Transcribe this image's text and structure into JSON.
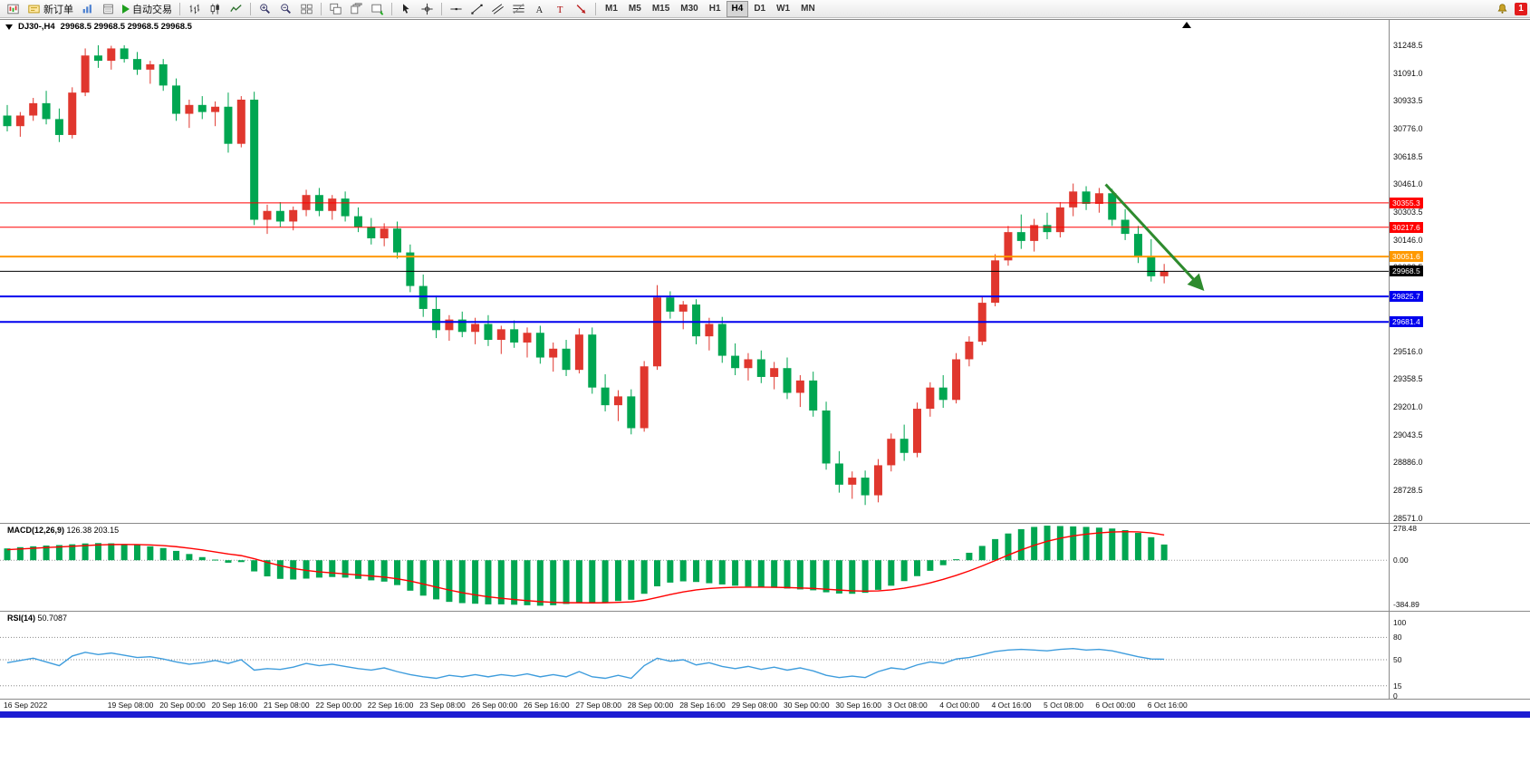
{
  "window": {
    "title": "DJ30-,H4",
    "ohlc": "29968.5 29968.5 29968.5 29968.5"
  },
  "toolbar": {
    "new_order_label": "新订单",
    "autotrading_label": "自动交易",
    "timeframes": [
      "M1",
      "M5",
      "M15",
      "M30",
      "H1",
      "H4",
      "D1",
      "W1",
      "MN"
    ],
    "active_timeframe": "H4",
    "notification_count": "1"
  },
  "chart_data": {
    "type": "candlestick",
    "symbol": "DJ30-",
    "timeframe": "H4",
    "colors": {
      "up": "#e0372e",
      "down": "#00a651",
      "macd_histogram": "#00a651",
      "macd_signal": "#ff0000",
      "rsi_line": "#3f9ddd"
    },
    "y_ticks": [
      "31248.5",
      "31091.0",
      "30933.5",
      "30776.0",
      "30618.5",
      "30461.0",
      "30303.5",
      "30146.0",
      "29988.5",
      "29831.0",
      "29673.5",
      "29516.0",
      "29358.5",
      "29201.0",
      "29043.5",
      "28886.0",
      "28728.5",
      "28571.0"
    ],
    "candles": [
      [
        30850,
        30910,
        30760,
        30790
      ],
      [
        30790,
        30870,
        30730,
        30850
      ],
      [
        30850,
        30950,
        30820,
        30920
      ],
      [
        30920,
        30990,
        30800,
        30830
      ],
      [
        30830,
        30890,
        30700,
        30740
      ],
      [
        30740,
        31010,
        30720,
        30980
      ],
      [
        30980,
        31230,
        30960,
        31190
      ],
      [
        31190,
        31248,
        31120,
        31160
      ],
      [
        31160,
        31245,
        31110,
        31230
      ],
      [
        31230,
        31248,
        31150,
        31170
      ],
      [
        31170,
        31210,
        31080,
        31110
      ],
      [
        31110,
        31160,
        31030,
        31140
      ],
      [
        31140,
        31170,
        30990,
        31020
      ],
      [
        31020,
        31060,
        30820,
        30860
      ],
      [
        30860,
        30940,
        30780,
        30910
      ],
      [
        30910,
        30960,
        30830,
        30870
      ],
      [
        30870,
        30930,
        30790,
        30900
      ],
      [
        30900,
        30980,
        30640,
        30690
      ],
      [
        30690,
        30960,
        30670,
        30940
      ],
      [
        30940,
        30985,
        30230,
        30260
      ],
      [
        30260,
        30345,
        30180,
        30310
      ],
      [
        30310,
        30360,
        30220,
        30250
      ],
      [
        30250,
        30335,
        30200,
        30315
      ],
      [
        30315,
        30430,
        30280,
        30400
      ],
      [
        30400,
        30440,
        30280,
        30310
      ],
      [
        30310,
        30400,
        30260,
        30380
      ],
      [
        30380,
        30420,
        30250,
        30280
      ],
      [
        30280,
        30330,
        30190,
        30220
      ],
      [
        30220,
        30270,
        30120,
        30155
      ],
      [
        30155,
        30240,
        30110,
        30210
      ],
      [
        30210,
        30250,
        30040,
        30075
      ],
      [
        30075,
        30120,
        29850,
        29885
      ],
      [
        29885,
        29950,
        29710,
        29755
      ],
      [
        29755,
        29830,
        29590,
        29635
      ],
      [
        29635,
        29720,
        29575,
        29695
      ],
      [
        29695,
        29740,
        29595,
        29625
      ],
      [
        29625,
        29705,
        29555,
        29670
      ],
      [
        29670,
        29720,
        29545,
        29580
      ],
      [
        29580,
        29660,
        29500,
        29640
      ],
      [
        29640,
        29690,
        29535,
        29565
      ],
      [
        29565,
        29650,
        29480,
        29620
      ],
      [
        29620,
        29660,
        29445,
        29480
      ],
      [
        29480,
        29565,
        29400,
        29530
      ],
      [
        29530,
        29580,
        29375,
        29410
      ],
      [
        29410,
        29645,
        29390,
        29610
      ],
      [
        29610,
        29650,
        29275,
        29310
      ],
      [
        29310,
        29385,
        29175,
        29210
      ],
      [
        29210,
        29295,
        29120,
        29260
      ],
      [
        29260,
        29300,
        29045,
        29080
      ],
      [
        29080,
        29460,
        29060,
        29430
      ],
      [
        29430,
        29890,
        29410,
        29820
      ],
      [
        29820,
        29855,
        29700,
        29740
      ],
      [
        29740,
        29800,
        29640,
        29780
      ],
      [
        29780,
        29810,
        29555,
        29600
      ],
      [
        29600,
        29705,
        29520,
        29670
      ],
      [
        29670,
        29710,
        29450,
        29490
      ],
      [
        29490,
        29560,
        29380,
        29420
      ],
      [
        29420,
        29505,
        29350,
        29470
      ],
      [
        29470,
        29520,
        29335,
        29370
      ],
      [
        29370,
        29455,
        29300,
        29420
      ],
      [
        29420,
        29480,
        29245,
        29280
      ],
      [
        29280,
        29380,
        29200,
        29350
      ],
      [
        29350,
        29400,
        29145,
        29180
      ],
      [
        29180,
        29230,
        28845,
        28880
      ],
      [
        28880,
        28950,
        28715,
        28760
      ],
      [
        28760,
        28835,
        28680,
        28800
      ],
      [
        28800,
        28840,
        28645,
        28700
      ],
      [
        28700,
        28905,
        28660,
        28870
      ],
      [
        28870,
        29050,
        28835,
        29020
      ],
      [
        29020,
        29100,
        28895,
        28940
      ],
      [
        28940,
        29225,
        28915,
        29190
      ],
      [
        29190,
        29340,
        29145,
        29310
      ],
      [
        29310,
        29380,
        29195,
        29240
      ],
      [
        29240,
        29505,
        29220,
        29470
      ],
      [
        29470,
        29600,
        29430,
        29570
      ],
      [
        29570,
        29825,
        29550,
        29790
      ],
      [
        29790,
        30065,
        29770,
        30030
      ],
      [
        30030,
        30225,
        30000,
        30190
      ],
      [
        30190,
        30290,
        30095,
        30140
      ],
      [
        30140,
        30265,
        30080,
        30230
      ],
      [
        30230,
        30300,
        30150,
        30190
      ],
      [
        30190,
        30360,
        30160,
        30330
      ],
      [
        30330,
        30465,
        30280,
        30420
      ],
      [
        30420,
        30450,
        30315,
        30350
      ],
      [
        30350,
        30440,
        30300,
        30410
      ],
      [
        30410,
        30435,
        30225,
        30260
      ],
      [
        30260,
        30320,
        30145,
        30180
      ],
      [
        30180,
        30225,
        30015,
        30050
      ],
      [
        30050,
        30150,
        29910,
        29940
      ],
      [
        29940,
        30010,
        29900,
        29968.5
      ]
    ],
    "hlines": [
      {
        "price": 30355.3,
        "label": "30355.3",
        "color": "#ff0000",
        "width": 1
      },
      {
        "price": 30217.6,
        "label": "30217.6",
        "color": "#ff0000",
        "width": 1
      },
      {
        "price": 30051.6,
        "label": "30051.6",
        "color": "#ff9900",
        "width": 2
      },
      {
        "price": 29968.5,
        "label": "29968.5",
        "color": "#000000",
        "width": 1
      },
      {
        "price": 29825.7,
        "label": "29825.7",
        "color": "#0000ee",
        "width": 2
      },
      {
        "price": 29681.4,
        "label": "29681.4",
        "color": "#0000ee",
        "width": 2
      }
    ],
    "current_price": 29968.5,
    "arrow": {
      "x1_bar": 84.5,
      "y1_price": 30460,
      "x2_bar": 91.8,
      "y2_price": 29880,
      "color": "#2e8b2e"
    },
    "x_labels": [
      {
        "bar": 0,
        "label": "16 Sep 2022"
      },
      {
        "bar": 8,
        "label": "19 Sep 08:00"
      },
      {
        "bar": 12,
        "label": "20 Sep 00:00"
      },
      {
        "bar": 16,
        "label": "20 Sep 16:00"
      },
      {
        "bar": 20,
        "label": "21 Sep 08:00"
      },
      {
        "bar": 24,
        "label": "22 Sep 00:00"
      },
      {
        "bar": 28,
        "label": "22 Sep 16:00"
      },
      {
        "bar": 32,
        "label": "23 Sep 08:00"
      },
      {
        "bar": 36,
        "label": "26 Sep 00:00"
      },
      {
        "bar": 40,
        "label": "26 Sep 16:00"
      },
      {
        "bar": 44,
        "label": "27 Sep 08:00"
      },
      {
        "bar": 48,
        "label": "28 Sep 00:00"
      },
      {
        "bar": 52,
        "label": "28 Sep 16:00"
      },
      {
        "bar": 56,
        "label": "29 Sep 08:00"
      },
      {
        "bar": 60,
        "label": "30 Sep 00:00"
      },
      {
        "bar": 64,
        "label": "30 Sep 16:00"
      },
      {
        "bar": 68,
        "label": "3 Oct 08:00"
      },
      {
        "bar": 72,
        "label": "4 Oct 00:00"
      },
      {
        "bar": 76,
        "label": "4 Oct 16:00"
      },
      {
        "bar": 80,
        "label": "5 Oct 08:00"
      },
      {
        "bar": 84,
        "label": "6 Oct 00:00"
      },
      {
        "bar": 88,
        "label": "6 Oct 16:00"
      }
    ],
    "macd": {
      "label": "MACD(12,26,9)",
      "values_label": "126.38 203.15",
      "y_ticks": [
        {
          "value": 278.48,
          "label": "278.48"
        },
        {
          "value": 0,
          "label": "0.00"
        },
        {
          "value": -384.89,
          "label": "-384.89"
        }
      ],
      "histogram": [
        95,
        105,
        112,
        118,
        122,
        128,
        135,
        138,
        136,
        130,
        122,
        112,
        98,
        75,
        50,
        25,
        5,
        -20,
        -15,
        -90,
        -130,
        -150,
        -155,
        -148,
        -140,
        -135,
        -140,
        -150,
        -162,
        -172,
        -200,
        -245,
        -285,
        -315,
        -335,
        -345,
        -350,
        -355,
        -355,
        -358,
        -362,
        -366,
        -362,
        -352,
        -340,
        -345,
        -338,
        -328,
        -318,
        -270,
        -210,
        -180,
        -170,
        -175,
        -185,
        -195,
        -205,
        -212,
        -218,
        -222,
        -228,
        -235,
        -242,
        -258,
        -268,
        -270,
        -262,
        -238,
        -205,
        -168,
        -128,
        -85,
        -40,
        8,
        60,
        115,
        170,
        215,
        250,
        268,
        278,
        275,
        272,
        268,
        262,
        255,
        242,
        220,
        185,
        126.38
      ],
      "signal": [
        85,
        90,
        96,
        102,
        107,
        112,
        118,
        123,
        126,
        127,
        126,
        123,
        118,
        109,
        97,
        83,
        67,
        50,
        37,
        12,
        -17,
        -44,
        -66,
        -82,
        -94,
        -102,
        -110,
        -118,
        -127,
        -136,
        -149,
        -168,
        -191,
        -216,
        -240,
        -261,
        -279,
        -294,
        -306,
        -316,
        -325,
        -333,
        -339,
        -342,
        -342,
        -343,
        -342,
        -339,
        -335,
        -322,
        -300,
        -276,
        -255,
        -239,
        -228,
        -221,
        -218,
        -217,
        -217,
        -218,
        -220,
        -223,
        -227,
        -233,
        -240,
        -246,
        -249,
        -247,
        -239,
        -225,
        -206,
        -182,
        -154,
        -122,
        -86,
        -46,
        -3,
        41,
        83,
        120,
        152,
        177,
        196,
        210,
        220,
        227,
        230,
        228,
        220,
        203.15
      ]
    },
    "rsi": {
      "label": "RSI(14)",
      "value_label": "50.7087",
      "levels": [
        80,
        50,
        15
      ],
      "y_ticks": [
        {
          "value": 100,
          "label": "100"
        },
        {
          "value": 80,
          "label": "80"
        },
        {
          "value": 50,
          "label": "50"
        },
        {
          "value": 15,
          "label": "15"
        },
        {
          "value": 0,
          "label": "0"
        }
      ],
      "values": [
        46,
        49,
        52,
        47,
        42,
        55,
        60,
        57,
        59,
        56,
        53,
        54,
        51,
        47,
        44,
        46,
        49,
        45,
        50,
        36,
        38,
        37,
        40,
        45,
        42,
        44,
        41,
        38,
        36,
        39,
        34,
        30,
        27,
        25,
        29,
        27,
        30,
        27,
        30,
        28,
        31,
        27,
        30,
        27,
        34,
        27,
        25,
        29,
        25,
        42,
        52,
        48,
        50,
        43,
        46,
        41,
        38,
        41,
        37,
        40,
        36,
        39,
        35,
        29,
        26,
        28,
        26,
        34,
        39,
        37,
        43,
        47,
        45,
        51,
        53,
        57,
        61,
        63,
        64,
        63,
        62,
        64,
        65,
        63,
        64,
        62,
        58,
        54,
        51,
        50.71
      ]
    }
  }
}
